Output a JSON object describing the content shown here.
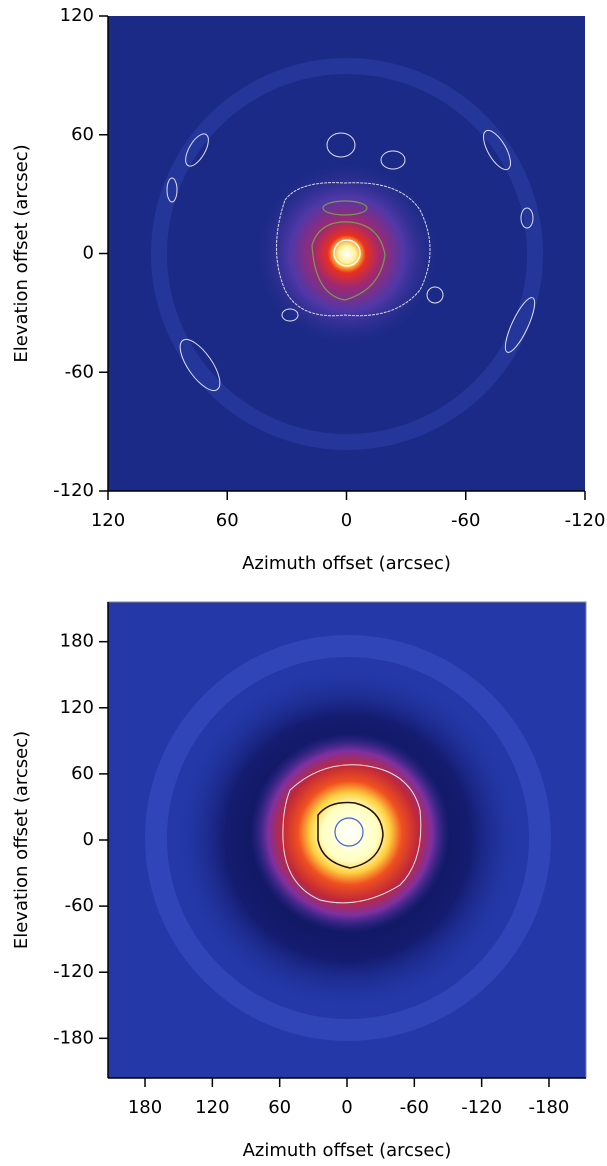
{
  "chart_data": [
    {
      "type": "heatmap",
      "x_label": "Azimuth offset (arcsec)",
      "y_label": "Elevation offset (arcsec)",
      "xlim": [
        120,
        -120
      ],
      "ylim": [
        -120,
        120
      ],
      "xticks": [
        120,
        60,
        0,
        -60,
        -120
      ],
      "yticks": [
        -120,
        -60,
        0,
        60,
        120
      ]
    },
    {
      "type": "heatmap",
      "x_label": "Azimuth offset (arcsec)",
      "y_label": "Elevation offset (arcsec)",
      "xlim": [
        213,
        -213
      ],
      "ylim": [
        -216,
        216
      ],
      "xticks": [
        180,
        120,
        60,
        0,
        -60,
        -120,
        -180
      ],
      "yticks": [
        -180,
        -120,
        -60,
        0,
        60,
        120,
        180
      ]
    }
  ]
}
